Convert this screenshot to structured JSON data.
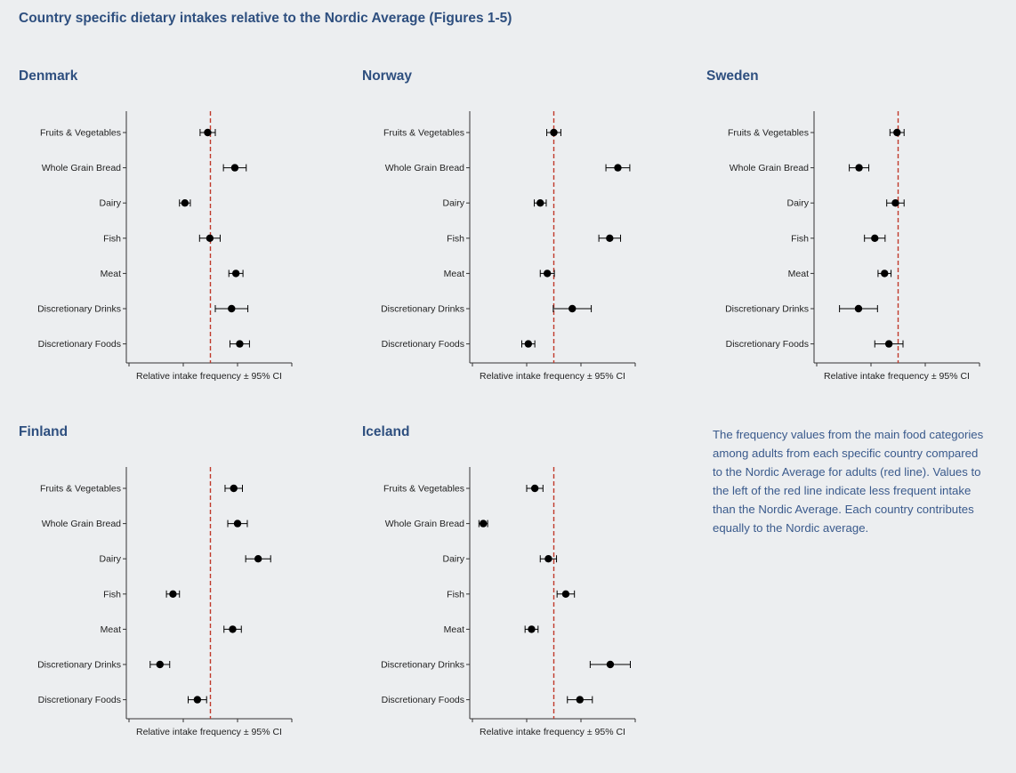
{
  "page": {
    "title": "Country specific dietary intakes relative to the Nordic Average (Figures 1-5)"
  },
  "note": "The frequency values from the main food categories among adults from each specific country compared to the Nordic Average for adults (red line). Values to the left of the red line indicate less frequent intake than the Nordic Average. Each country contributes equally to the Nordic average.",
  "colors": {
    "title": "#2e4f7f",
    "reference_line": "#c0392b",
    "points": "#000000",
    "background": "#eceef0"
  },
  "chart_data": [
    {
      "type": "scatter",
      "title": "Denmark",
      "xlabel": "Relative intake frequency ± 95% CI",
      "categories": [
        "Fruits & Vegetables",
        "Whole Grain Bread",
        "Dairy",
        "Fish",
        "Meat",
        "Discretionary Drinks",
        "Discretionary Foods"
      ],
      "xlim": [
        0,
        3
      ],
      "reference_line": 1.5,
      "points": [
        {
          "category": "Fruits & Vegetables",
          "value": 1.45,
          "ci": [
            1.31,
            1.59
          ]
        },
        {
          "category": "Whole Grain Bread",
          "value": 1.95,
          "ci": [
            1.74,
            2.16
          ]
        },
        {
          "category": "Dairy",
          "value": 1.03,
          "ci": [
            0.93,
            1.13
          ]
        },
        {
          "category": "Fish",
          "value": 1.49,
          "ci": [
            1.3,
            1.68
          ]
        },
        {
          "category": "Meat",
          "value": 1.97,
          "ci": [
            1.84,
            2.1
          ]
        },
        {
          "category": "Discretionary Drinks",
          "value": 1.89,
          "ci": [
            1.59,
            2.19
          ]
        },
        {
          "category": "Discretionary Foods",
          "value": 2.04,
          "ci": [
            1.86,
            2.22
          ]
        }
      ]
    },
    {
      "type": "scatter",
      "title": "Norway",
      "xlabel": "Relative intake frequency ± 95% CI",
      "categories": [
        "Fruits & Vegetables",
        "Whole Grain Bread",
        "Dairy",
        "Fish",
        "Meat",
        "Discretionary Drinks",
        "Discretionary Foods"
      ],
      "xlim": [
        0,
        3
      ],
      "reference_line": 1.5,
      "points": [
        {
          "category": "Fruits & Vegetables",
          "value": 1.5,
          "ci": [
            1.37,
            1.63
          ]
        },
        {
          "category": "Whole Grain Bread",
          "value": 2.68,
          "ci": [
            2.46,
            2.9
          ]
        },
        {
          "category": "Dairy",
          "value": 1.25,
          "ci": [
            1.14,
            1.36
          ]
        },
        {
          "category": "Fish",
          "value": 2.53,
          "ci": [
            2.33,
            2.73
          ]
        },
        {
          "category": "Meat",
          "value": 1.38,
          "ci": [
            1.25,
            1.51
          ]
        },
        {
          "category": "Discretionary Drinks",
          "value": 1.84,
          "ci": [
            1.49,
            2.19
          ]
        },
        {
          "category": "Discretionary Foods",
          "value": 1.03,
          "ci": [
            0.91,
            1.15
          ]
        }
      ]
    },
    {
      "type": "scatter",
      "title": "Sweden",
      "xlabel": "Relative intake frequency ± 95% CI",
      "categories": [
        "Fruits & Vegetables",
        "Whole Grain Bread",
        "Dairy",
        "Fish",
        "Meat",
        "Discretionary Drinks",
        "Discretionary Foods"
      ],
      "xlim": [
        0,
        3
      ],
      "reference_line": 1.5,
      "points": [
        {
          "category": "Fruits & Vegetables",
          "value": 1.48,
          "ci": [
            1.35,
            1.61
          ]
        },
        {
          "category": "Whole Grain Bread",
          "value": 0.78,
          "ci": [
            0.6,
            0.96
          ]
        },
        {
          "category": "Dairy",
          "value": 1.45,
          "ci": [
            1.29,
            1.61
          ]
        },
        {
          "category": "Fish",
          "value": 1.07,
          "ci": [
            0.88,
            1.26
          ]
        },
        {
          "category": "Meat",
          "value": 1.25,
          "ci": [
            1.13,
            1.37
          ]
        },
        {
          "category": "Discretionary Drinks",
          "value": 0.77,
          "ci": [
            0.42,
            1.12
          ]
        },
        {
          "category": "Discretionary Foods",
          "value": 1.33,
          "ci": [
            1.07,
            1.59
          ]
        }
      ]
    },
    {
      "type": "scatter",
      "title": "Finland",
      "xlabel": "Relative intake frequency ± 95% CI",
      "categories": [
        "Fruits & Vegetables",
        "Whole Grain Bread",
        "Dairy",
        "Fish",
        "Meat",
        "Discretionary Drinks",
        "Discretionary Foods"
      ],
      "xlim": [
        0,
        3
      ],
      "reference_line": 1.5,
      "points": [
        {
          "category": "Fruits & Vegetables",
          "value": 1.93,
          "ci": [
            1.77,
            2.09
          ]
        },
        {
          "category": "Whole Grain Bread",
          "value": 2.0,
          "ci": [
            1.82,
            2.18
          ]
        },
        {
          "category": "Dairy",
          "value": 2.38,
          "ci": [
            2.15,
            2.61
          ]
        },
        {
          "category": "Fish",
          "value": 0.81,
          "ci": [
            0.69,
            0.93
          ]
        },
        {
          "category": "Meat",
          "value": 1.91,
          "ci": [
            1.75,
            2.07
          ]
        },
        {
          "category": "Discretionary Drinks",
          "value": 0.57,
          "ci": [
            0.39,
            0.75
          ]
        },
        {
          "category": "Discretionary Foods",
          "value": 1.26,
          "ci": [
            1.09,
            1.43
          ]
        }
      ]
    },
    {
      "type": "scatter",
      "title": "Iceland",
      "xlabel": "Relative intake frequency ± 95% CI",
      "categories": [
        "Fruits & Vegetables",
        "Whole Grain Bread",
        "Dairy",
        "Fish",
        "Meat",
        "Discretionary Drinks",
        "Discretionary Foods"
      ],
      "xlim": [
        0,
        3
      ],
      "reference_line": 1.5,
      "points": [
        {
          "category": "Fruits & Vegetables",
          "value": 1.15,
          "ci": [
            1.0,
            1.3
          ]
        },
        {
          "category": "Whole Grain Bread",
          "value": 0.2,
          "ci": [
            0.12,
            0.28
          ]
        },
        {
          "category": "Dairy",
          "value": 1.4,
          "ci": [
            1.25,
            1.55
          ]
        },
        {
          "category": "Fish",
          "value": 1.72,
          "ci": [
            1.56,
            1.88
          ]
        },
        {
          "category": "Meat",
          "value": 1.09,
          "ci": [
            0.97,
            1.21
          ]
        },
        {
          "category": "Discretionary Drinks",
          "value": 2.54,
          "ci": [
            2.17,
            2.91
          ]
        },
        {
          "category": "Discretionary Foods",
          "value": 1.98,
          "ci": [
            1.75,
            2.21
          ]
        }
      ]
    }
  ]
}
